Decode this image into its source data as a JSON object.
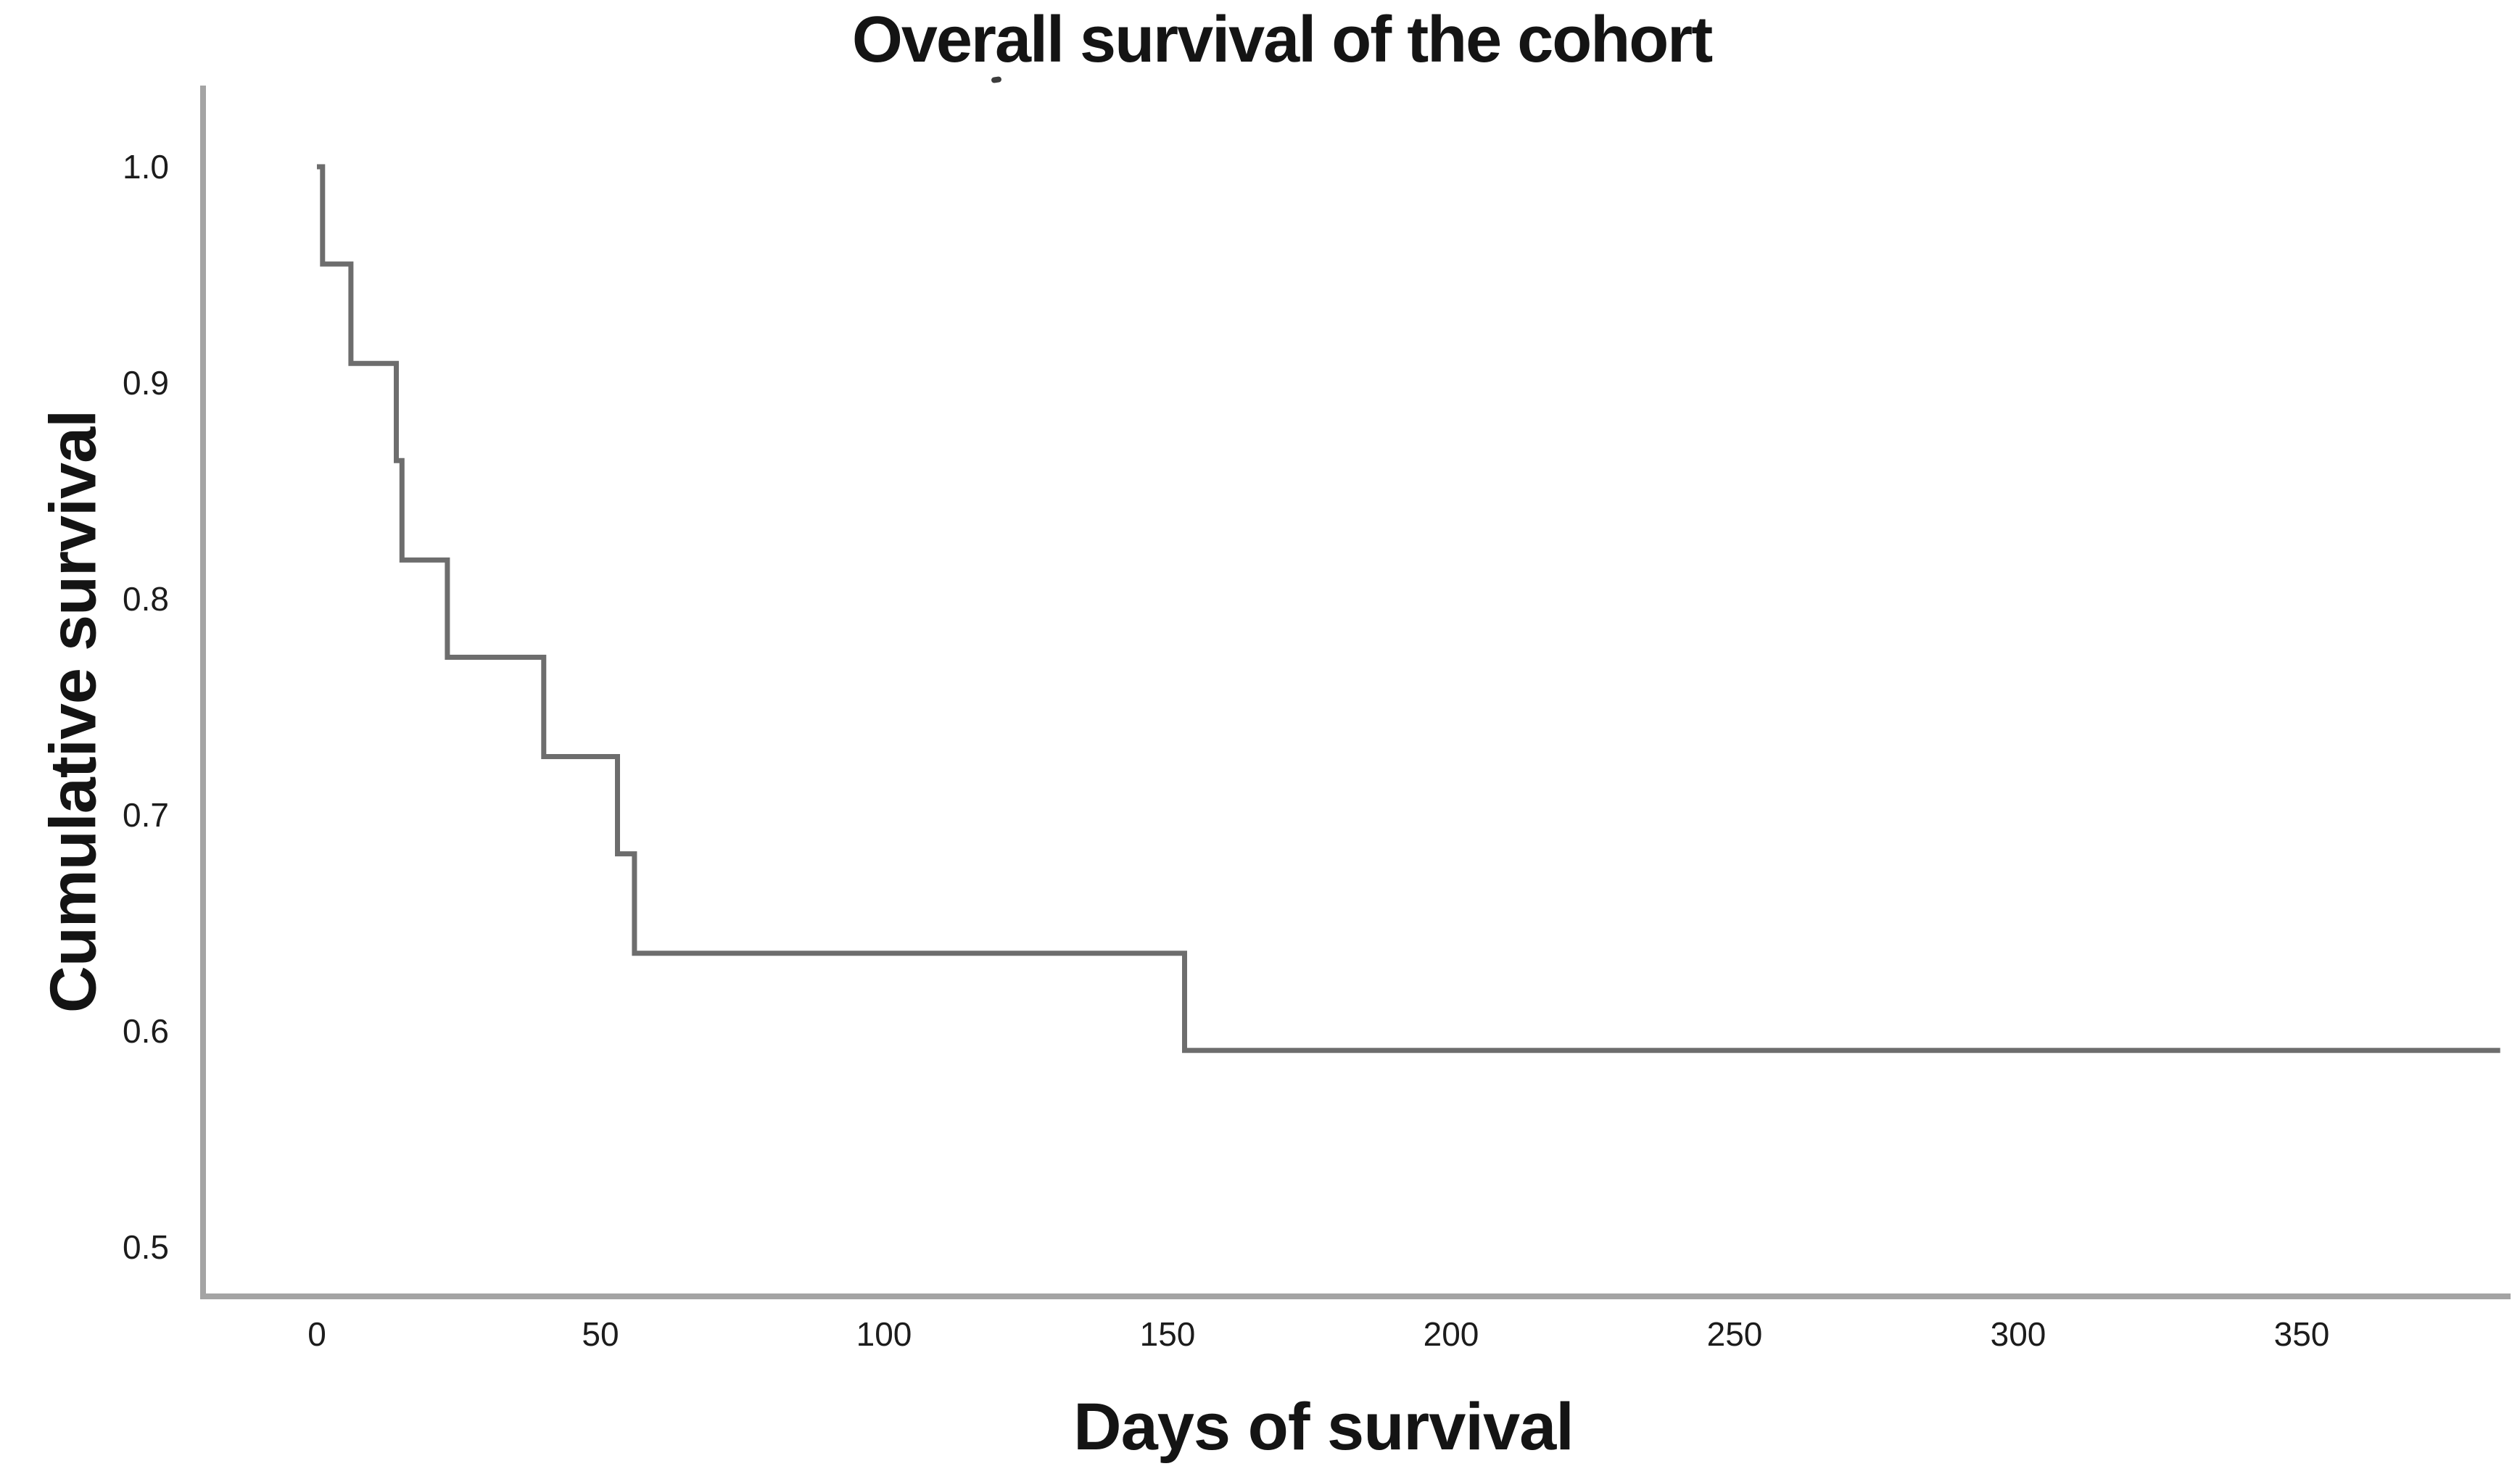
{
  "chart_data": {
    "type": "line",
    "subtype": "kaplan-meier-step-curve",
    "title": "Overall survival of the cohort",
    "xlabel": "Days of survival",
    "ylabel": "Cumulative survival",
    "x_ticks": [
      0,
      50,
      100,
      150,
      200,
      250,
      300,
      350
    ],
    "y_tick_labels": [
      "1.0",
      "0.9",
      "0.8",
      "0.7",
      "0.6",
      "0.5"
    ],
    "y_tick_values": [
      1.0,
      0.9,
      0.8,
      0.7,
      0.6,
      0.5
    ],
    "xlim": [
      -20,
      387
    ],
    "ylim_visible": [
      0.5,
      1.0
    ],
    "grid": false,
    "legend": "none",
    "censor_marks": false,
    "series": [
      {
        "name": "Overall survival",
        "step": "post",
        "points": [
          {
            "day": 0,
            "survival": 1.0
          },
          {
            "day": 1,
            "survival": 0.955
          },
          {
            "day": 6,
            "survival": 0.909
          },
          {
            "day": 14,
            "survival": 0.864
          },
          {
            "day": 15,
            "survival": 0.818
          },
          {
            "day": 23,
            "survival": 0.773
          },
          {
            "day": 40,
            "survival": 0.727
          },
          {
            "day": 53,
            "survival": 0.682
          },
          {
            "day": 56,
            "survival": 0.636
          },
          {
            "day": 153,
            "survival": 0.591
          },
          {
            "day": 385,
            "survival": 0.591
          }
        ]
      }
    ],
    "colors": {
      "background": "#ffffff",
      "axis": "#a4a4a4",
      "curve": "#6d6d6d",
      "text": "#141414",
      "tick_text": "#1c1c1c"
    }
  }
}
